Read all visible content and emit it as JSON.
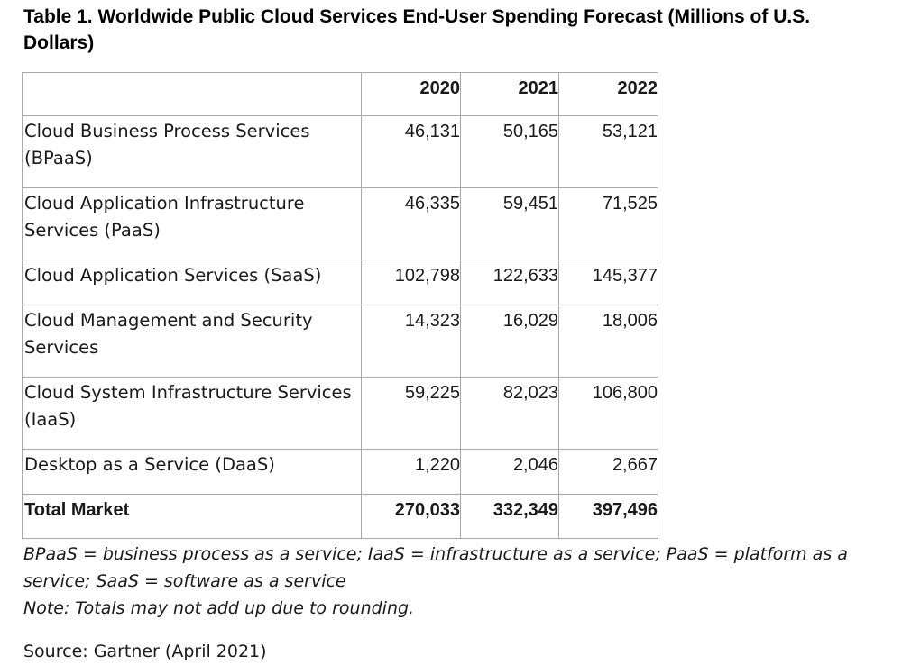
{
  "title": "Table 1. Worldwide Public Cloud Services End-User Spending Forecast (Millions of U.S. Dollars)",
  "table": {
    "columns": [
      "",
      "2020",
      "2021",
      "2022"
    ],
    "rows": [
      {
        "label": "Cloud Business Process Services (BPaaS)",
        "values": [
          "46,131",
          "50,165",
          "53,121"
        ]
      },
      {
        "label": "Cloud Application Infrastructure Services (PaaS)",
        "values": [
          "46,335",
          "59,451",
          "71,525"
        ]
      },
      {
        "label": "Cloud Application Services (SaaS)",
        "values": [
          "102,798",
          "122,633",
          "145,377"
        ]
      },
      {
        "label": "Cloud Management and Security Services",
        "values": [
          "14,323",
          "16,029",
          "18,006"
        ]
      },
      {
        "label": "Cloud System Infrastructure Services (IaaS)",
        "values": [
          "59,225",
          "82,023",
          "106,800"
        ]
      },
      {
        "label": "Desktop as a Service (DaaS)",
        "values": [
          "1,220",
          "2,046",
          "2,667"
        ]
      }
    ],
    "total": {
      "label": "Total Market",
      "values": [
        "270,033",
        "332,349",
        "397,496"
      ]
    }
  },
  "footnote": {
    "abbreviations": "BPaaS = business process as a service; IaaS = infrastructure as a service; PaaS = platform as a service; SaaS = software as a service",
    "note": "Note: Totals may not add up due to rounding."
  },
  "source": "Source: Gartner (April 2021)"
}
